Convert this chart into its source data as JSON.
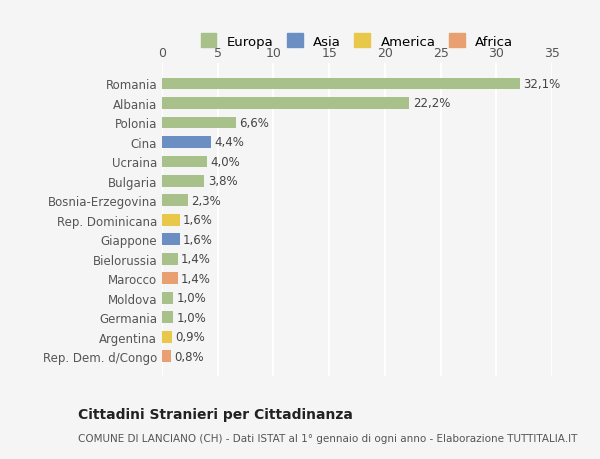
{
  "countries": [
    "Rep. Dem. d/Congo",
    "Argentina",
    "Germania",
    "Moldova",
    "Marocco",
    "Bielorussia",
    "Giappone",
    "Rep. Dominicana",
    "Bosnia-Erzegovina",
    "Bulgaria",
    "Ucraina",
    "Cina",
    "Polonia",
    "Albania",
    "Romania"
  ],
  "values": [
    0.8,
    0.9,
    1.0,
    1.0,
    1.4,
    1.4,
    1.6,
    1.6,
    2.3,
    3.8,
    4.0,
    4.4,
    6.6,
    22.2,
    32.1
  ],
  "labels": [
    "0,8%",
    "0,9%",
    "1,0%",
    "1,0%",
    "1,4%",
    "1,4%",
    "1,6%",
    "1,6%",
    "2,3%",
    "3,8%",
    "4,0%",
    "4,4%",
    "6,6%",
    "22,2%",
    "32,1%"
  ],
  "continent": [
    "Africa",
    "America",
    "Europa",
    "Europa",
    "Africa",
    "Europa",
    "Asia",
    "America",
    "Europa",
    "Europa",
    "Europa",
    "Asia",
    "Europa",
    "Europa",
    "Europa"
  ],
  "colors": {
    "Europa": "#a8c08a",
    "Asia": "#6b8fc2",
    "America": "#e8c84a",
    "Africa": "#e8a070"
  },
  "legend_order": [
    "Europa",
    "Asia",
    "America",
    "Africa"
  ],
  "xlim": [
    0,
    35
  ],
  "xticks": [
    0,
    5,
    10,
    15,
    20,
    25,
    30,
    35
  ],
  "title": "Cittadini Stranieri per Cittadinanza",
  "subtitle": "COMUNE DI LANCIANO (CH) - Dati ISTAT al 1° gennaio di ogni anno - Elaborazione TUTTITALIA.IT",
  "bg_color": "#f5f5f5",
  "grid_color": "#ffffff",
  "bar_height": 0.6
}
